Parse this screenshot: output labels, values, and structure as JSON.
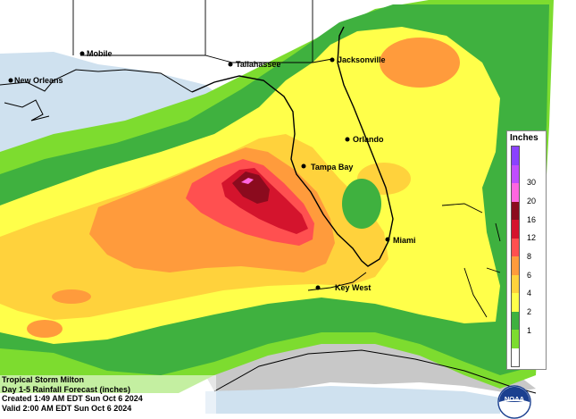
{
  "title": "Tropical Storm Milton",
  "subtitle": "Day 1-5 Rainfall Forecast (inches)",
  "created": "Created 1:49 AM EDT Sun Oct 6 2024",
  "valid": "Valid 2:00 AM EDT Sun Oct 6 2024",
  "legend": {
    "title": "Inches",
    "ticks": [
      "30",
      "20",
      "16",
      "12",
      "8",
      "6",
      "4",
      "2",
      "1"
    ],
    "colors": [
      "#ffffff",
      "#7ddc2f",
      "#3fb13f",
      "#ffff4a",
      "#ffd23c",
      "#ff9b3c",
      "#ff5050",
      "#d4142d",
      "#8b0b1e",
      "#ff66e0",
      "#c04cff",
      "#8a42ff"
    ]
  },
  "cities": [
    {
      "name": "Mobile"
    },
    {
      "name": "New Orleans"
    },
    {
      "name": "Tallahassee"
    },
    {
      "name": "Jacksonville"
    },
    {
      "name": "Orlando"
    },
    {
      "name": "Tampa Bay"
    },
    {
      "name": "Miami"
    },
    {
      "name": "Key West"
    }
  ],
  "logo": {
    "text": "NOAA",
    "icon": "noaa-logo-icon"
  }
}
